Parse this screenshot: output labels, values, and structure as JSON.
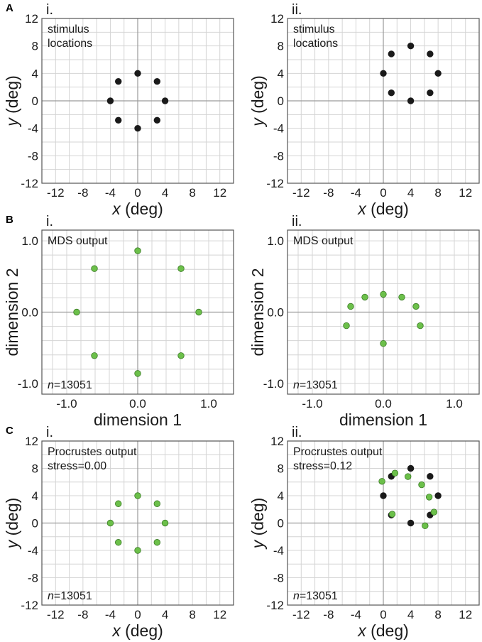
{
  "colors": {
    "black": "#1a1a1a",
    "green": "#6cc04a",
    "green_edge": "#3a7a25"
  },
  "chart_data": [
    {
      "panel": "A",
      "sub": "i.",
      "type": "scatter",
      "lines": [
        "stimulus",
        "locations"
      ],
      "xlabel_var": "x",
      "xlabel_unit": "(deg)",
      "ylabel_var": "y",
      "ylabel_unit": "(deg)",
      "xlim": [
        -14,
        14
      ],
      "ylim": [
        -12,
        12
      ],
      "xticks": [
        "-12",
        "-8",
        "-4",
        "0",
        "4",
        "8",
        "12"
      ],
      "yticks": [
        "12",
        "8",
        "4",
        "0",
        "-4",
        "-8",
        "-12"
      ],
      "series": [
        {
          "name": "stimulus",
          "color": "black",
          "points": [
            [
              0,
              4
            ],
            [
              2.83,
              2.83
            ],
            [
              4,
              0
            ],
            [
              2.83,
              -2.83
            ],
            [
              0,
              -4
            ],
            [
              -2.83,
              -2.83
            ],
            [
              -4,
              0
            ],
            [
              -2.83,
              2.83
            ]
          ]
        }
      ]
    },
    {
      "panel": "",
      "sub": "ii.",
      "type": "scatter",
      "lines": [
        "stimulus",
        "locations"
      ],
      "xlabel_var": "x",
      "xlabel_unit": "(deg)",
      "ylabel_var": "y",
      "ylabel_unit": "(deg)",
      "xlim": [
        -14,
        14
      ],
      "ylim": [
        -12,
        12
      ],
      "xticks": [
        "-12",
        "-8",
        "-4",
        "0",
        "4",
        "8",
        "12"
      ],
      "yticks": [
        "12",
        "8",
        "4",
        "0",
        "-4",
        "-8",
        "-12"
      ],
      "series": [
        {
          "name": "stimulus",
          "color": "black",
          "points": [
            [
              4,
              8
            ],
            [
              6.83,
              6.83
            ],
            [
              8,
              4
            ],
            [
              6.83,
              1.17
            ],
            [
              4,
              0
            ],
            [
              1.17,
              1.17
            ],
            [
              0,
              4
            ],
            [
              1.17,
              6.83
            ]
          ]
        }
      ]
    },
    {
      "panel": "B",
      "sub": "i.",
      "type": "scatter",
      "lines": [
        "MDS output"
      ],
      "n_label": "n",
      "n_value": "=13051",
      "xlabel": "dimension 1",
      "ylabel": "dimension 2",
      "xlim": [
        -1.35,
        1.35
      ],
      "ylim": [
        -1.15,
        1.15
      ],
      "xtick_values": [
        -1.0,
        0.0,
        1.0
      ],
      "xticks": [
        "-1.0",
        "0.0",
        "1.0"
      ],
      "ytick_values": [
        1.0,
        0.0,
        -1.0
      ],
      "yticks": [
        "1.0",
        "0.0",
        "-1.0"
      ],
      "grid_step": 0.2,
      "series": [
        {
          "name": "MDS",
          "color": "green",
          "points": [
            [
              0,
              0.86
            ],
            [
              0.61,
              0.61
            ],
            [
              0.86,
              0
            ],
            [
              0.61,
              -0.61
            ],
            [
              0,
              -0.86
            ],
            [
              -0.61,
              -0.61
            ],
            [
              -0.86,
              0
            ],
            [
              -0.61,
              0.61
            ]
          ]
        }
      ]
    },
    {
      "panel": "",
      "sub": "ii.",
      "type": "scatter",
      "lines": [
        "MDS output"
      ],
      "n_label": "n",
      "n_value": "=13051",
      "xlabel": "dimension 1",
      "ylabel": "dimension 2",
      "xlim": [
        -1.35,
        1.35
      ],
      "ylim": [
        -1.15,
        1.15
      ],
      "xtick_values": [
        -1.0,
        0.0,
        1.0
      ],
      "xticks": [
        "-1.0",
        "0.0",
        "1.0"
      ],
      "ytick_values": [
        1.0,
        0.0,
        -1.0
      ],
      "yticks": [
        "1.0",
        "0.0",
        "-1.0"
      ],
      "grid_step": 0.2,
      "series": [
        {
          "name": "MDS",
          "color": "green",
          "points": [
            [
              0,
              0.25
            ],
            [
              0.26,
              0.21
            ],
            [
              0.46,
              0.08
            ],
            [
              0.52,
              -0.19
            ],
            [
              0,
              -0.44
            ],
            [
              -0.52,
              -0.19
            ],
            [
              -0.46,
              0.08
            ],
            [
              -0.26,
              0.21
            ]
          ]
        }
      ]
    },
    {
      "panel": "C",
      "sub": "i.",
      "type": "scatter",
      "lines": [
        "Procrustes output",
        "stress=0.00"
      ],
      "n_label": "n",
      "n_value": "=13051",
      "xlabel_var": "x",
      "xlabel_unit": "(deg)",
      "ylabel_var": "y",
      "ylabel_unit": "(deg)",
      "xlim": [
        -14,
        14
      ],
      "ylim": [
        -12,
        12
      ],
      "xticks": [
        "-12",
        "-8",
        "-4",
        "0",
        "4",
        "8",
        "12"
      ],
      "yticks": [
        "12",
        "8",
        "4",
        "0",
        "-4",
        "-8",
        "-12"
      ],
      "series": [
        {
          "name": "Procrustes",
          "color": "green",
          "points": [
            [
              0,
              4
            ],
            [
              2.83,
              2.83
            ],
            [
              4,
              0
            ],
            [
              2.83,
              -2.83
            ],
            [
              0,
              -4
            ],
            [
              -2.83,
              -2.83
            ],
            [
              -4,
              0
            ],
            [
              -2.83,
              2.83
            ]
          ]
        }
      ]
    },
    {
      "panel": "",
      "sub": "ii.",
      "type": "scatter",
      "lines": [
        "Procrustes output",
        "stress=0.12"
      ],
      "n_label": "n",
      "n_value": "=13051",
      "xlabel_var": "x",
      "xlabel_unit": "(deg)",
      "ylabel_var": "y",
      "ylabel_unit": "(deg)",
      "xlim": [
        -14,
        14
      ],
      "ylim": [
        -12,
        12
      ],
      "xticks": [
        "-12",
        "-8",
        "-4",
        "0",
        "4",
        "8",
        "12"
      ],
      "yticks": [
        "12",
        "8",
        "4",
        "0",
        "-4",
        "-8",
        "-12"
      ],
      "series": [
        {
          "name": "stimulus",
          "color": "black",
          "points": [
            [
              4,
              8
            ],
            [
              6.83,
              6.83
            ],
            [
              8,
              4
            ],
            [
              6.83,
              1.17
            ],
            [
              4,
              0
            ],
            [
              1.17,
              1.17
            ],
            [
              0,
              4
            ],
            [
              1.17,
              6.83
            ]
          ]
        },
        {
          "name": "Procrustes",
          "color": "green",
          "points": [
            [
              -0.2,
              6.1
            ],
            [
              1.7,
              7.3
            ],
            [
              3.6,
              6.8
            ],
            [
              5.6,
              5.6
            ],
            [
              6.7,
              3.8
            ],
            [
              7.4,
              1.6
            ],
            [
              6.1,
              -0.4
            ],
            [
              1.3,
              1.3
            ]
          ]
        }
      ]
    }
  ]
}
